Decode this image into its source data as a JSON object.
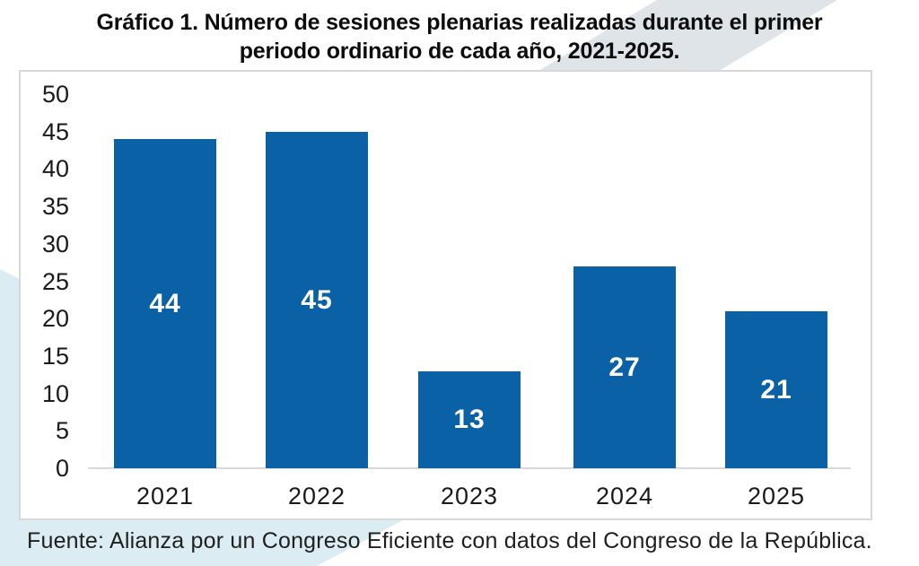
{
  "title": {
    "line1": "Gráfico 1. Número de sesiones plenarias realizadas durante el primer",
    "line2": "periodo ordinario de cada año, 2021-2025.",
    "full": "Gráfico 1. Número de sesiones plenarias realizadas durante el primer periodo ordinario de cada año, 2021-2025."
  },
  "source_note": "Fuente: Alianza por un Congreso Eficiente con datos del Congreso de la República.",
  "colors": {
    "bar": "#0A61A6",
    "bar_value_label": "#FFFFFF",
    "title_text": "#0D0D0D",
    "axis_text": "#1A1A1A",
    "axis_line": "#D9D9D9",
    "panel_border": "#D8D8D8",
    "panel_background": "#FFFFFF",
    "page_background": "#FFFFFF",
    "source_text": "#1F1F1F",
    "top_right_band": "#DEE4E8",
    "bottom_left_shape": "#DBECF3"
  },
  "chart_data": {
    "type": "bar",
    "title": "Gráfico 1. Número de sesiones plenarias realizadas durante el primer periodo ordinario de cada año, 2021-2025.",
    "categories": [
      "2021",
      "2022",
      "2023",
      "2024",
      "2025"
    ],
    "values": [
      44,
      45,
      13,
      27,
      21
    ],
    "value_labels": [
      "44",
      "45",
      "13",
      "27",
      "21"
    ],
    "xlabel": "",
    "ylabel": "",
    "ylim": [
      0,
      50
    ],
    "yticks": [
      0,
      5,
      10,
      15,
      20,
      25,
      30,
      35,
      40,
      45,
      50
    ],
    "grid": false,
    "legend": false,
    "bar_color": "#0A61A6",
    "value_label_position": "inside-center",
    "source_note": "Fuente: Alianza por un Congreso Eficiente con datos del Congreso de la República."
  }
}
